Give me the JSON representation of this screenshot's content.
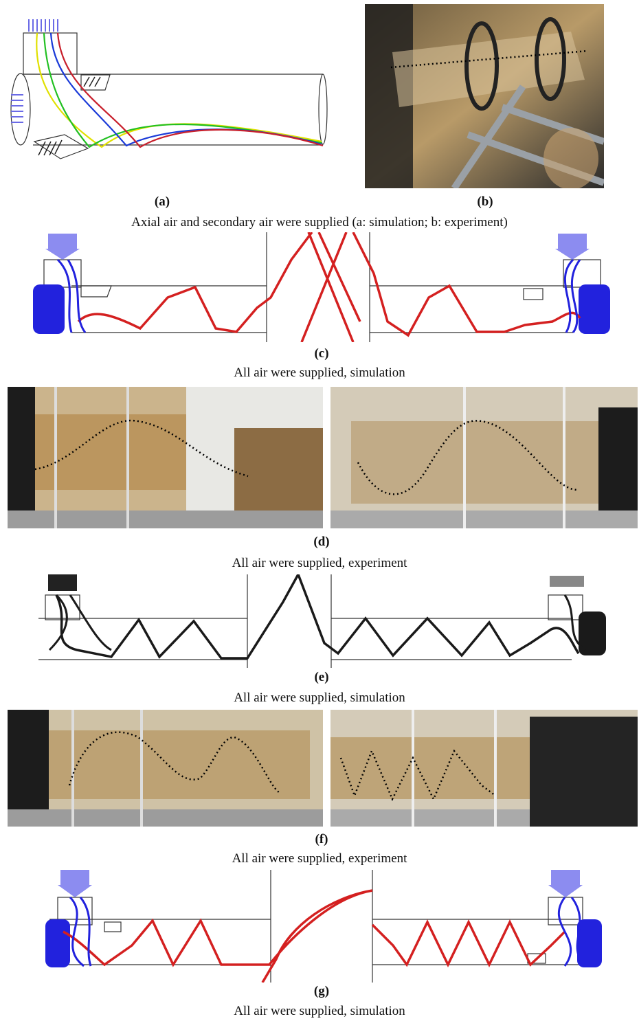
{
  "figure": {
    "row1": {
      "label_a": "(a)",
      "label_b": "(b)",
      "caption": "Axial air and secondary air were supplied (a: simulation; b: experiment)"
    },
    "row_c": {
      "label": "(c)",
      "caption": "All air were supplied, simulation"
    },
    "row_d": {
      "label": "(d)",
      "caption": "All air were supplied, experiment"
    },
    "row_e": {
      "label": "(e)",
      "caption": "All air were supplied, simulation"
    },
    "row_f": {
      "label": "(f)",
      "caption": "All air were supplied, experiment"
    },
    "row_g": {
      "label": "(g)",
      "caption": "All air were supplied, simulation"
    }
  },
  "colors": {
    "trajectory_red": "#d42020",
    "trajectory_black": "#1a1a1a",
    "inlet_blue": "#2222dd",
    "inlet_light_blue": "#8c8cf0",
    "streamline_yellow": "#e8e800",
    "streamline_green": "#22cc22",
    "streamline_blue": "#1a3ad8",
    "streamline_red": "#cc2030",
    "photo_tone": "#c7a272"
  }
}
